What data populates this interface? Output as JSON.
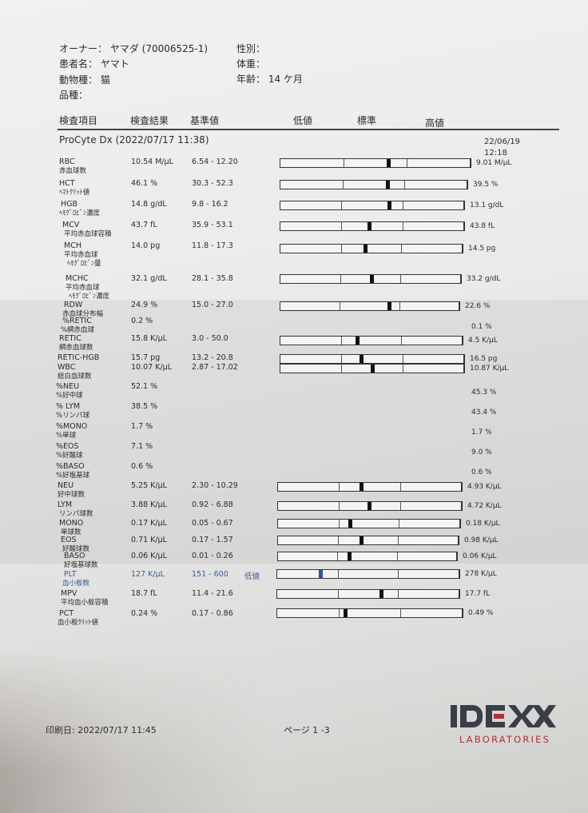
{
  "patient": {
    "owner_label": "オーナー：",
    "owner": "ヤマダ (70006525-1)",
    "name_label": "患者名：",
    "name": "ヤマト",
    "species_label": "動物種：",
    "species": "猫",
    "breed_label": "品種：",
    "breed": "",
    "sex_label": "性別：",
    "sex": "",
    "weight_label": "体重：",
    "weight": "",
    "age_label": "年齢：",
    "age": "14 ケ月"
  },
  "columns": {
    "item": "検査項目",
    "result": "検査結果",
    "reference": "基準値",
    "low": "低値",
    "normal": "標準",
    "high": "高値"
  },
  "instrument": "ProCyte Dx (2022/07/17 11:38)",
  "previous": {
    "date": "22/06/19",
    "time": "12:18"
  },
  "rows": [
    {
      "name": "RBC",
      "jp": [
        "赤血球数"
      ],
      "result": "10.54 M/µL",
      "value": 10.54,
      "ref": "6.54 - 12.20",
      "lo": 6.54,
      "hi": 12.2,
      "prev": "9.01 M/µL",
      "bar": true
    },
    {
      "name": "HCT",
      "jp": [
        "ﾍﾏﾄｸﾘｯﾄ値"
      ],
      "result": "46.1 %",
      "value": 46.1,
      "ref": "30.3 - 52.3",
      "lo": 30.3,
      "hi": 52.3,
      "prev": "39.5 %",
      "bar": true
    },
    {
      "name": "HGB",
      "jp": [
        "ﾍﾓｸﾞﾛﾋﾞﾝ濃度"
      ],
      "result": "14.8 g/dL",
      "value": 14.8,
      "ref": "9.8 - 16.2",
      "lo": 9.8,
      "hi": 16.2,
      "prev": "13.1 g/dL",
      "bar": true
    },
    {
      "name": "MCV",
      "jp": [
        "平均赤血球容積"
      ],
      "result": "43.7 fL",
      "value": 43.7,
      "ref": "35.9 - 53.1",
      "lo": 35.9,
      "hi": 53.1,
      "prev": "43.8 fL",
      "bar": true
    },
    {
      "name": "MCH",
      "jp": [
        "平均赤血球",
        "ﾍﾓｸﾞﾛﾋﾞﾝ量"
      ],
      "result": "14.0 pg",
      "value": 14.0,
      "ref": "11.8 - 17.3",
      "lo": 11.8,
      "hi": 17.3,
      "prev": "14.5 pg",
      "bar": true
    },
    {
      "name": "MCHC",
      "jp": [
        "平均赤血球",
        "ﾍﾓｸﾞﾛﾋﾞﾝ濃度"
      ],
      "result": "32.1 g/dL",
      "value": 32.1,
      "ref": "28.1 - 35.8",
      "lo": 28.1,
      "hi": 35.8,
      "prev": "33.2 g/dL",
      "bar": true
    },
    {
      "name": "RDW",
      "jp": [
        "赤血球分布幅"
      ],
      "result": "24.9 %",
      "value": 24.9,
      "ref": "15.0 - 27.0",
      "lo": 15.0,
      "hi": 27.0,
      "prev": "22.6 %",
      "bar": true
    },
    {
      "name": "%RETIC",
      "jp": [
        "%網赤血球"
      ],
      "result": "0.2 %",
      "ref": "",
      "prev": "0.1 %",
      "bar": false
    },
    {
      "name": "RETIC",
      "jp": [
        "網赤血球数"
      ],
      "result": "15.8 K/µL",
      "value": 15.8,
      "ref": "3.0 - 50.0",
      "lo": 3.0,
      "hi": 50.0,
      "prev": "4.5 K/µL",
      "bar": true
    },
    {
      "name": "RETIC-HGB",
      "jp": [],
      "result": "15.7 pg",
      "value": 15.7,
      "ref": "13.2 - 20.8",
      "lo": 13.2,
      "hi": 20.8,
      "prev": "16.5 pg",
      "bar": true
    },
    {
      "name": "WBC",
      "jp": [
        "総白血球数"
      ],
      "result": "10.07 K/µL",
      "value": 10.07,
      "ref": "2.87 - 17.02",
      "lo": 2.87,
      "hi": 17.02,
      "prev": "10.87 K/µL",
      "bar": true
    },
    {
      "name": "%NEU",
      "jp": [
        "%好中球"
      ],
      "result": "52.1 %",
      "ref": "",
      "prev": "45.3 %",
      "bar": false
    },
    {
      "name": "% LYM",
      "jp": [
        "%リンパ球"
      ],
      "result": "38.5 %",
      "ref": "",
      "prev": "43.4 %",
      "bar": false
    },
    {
      "name": "%MONO",
      "jp": [
        "%単球"
      ],
      "result": "1.7 %",
      "ref": "",
      "prev": "1.7 %",
      "bar": false
    },
    {
      "name": "%EOS",
      "jp": [
        "%好酸球"
      ],
      "result": "7.1 %",
      "ref": "",
      "prev": "9.0 %",
      "bar": false
    },
    {
      "name": "%BASO",
      "jp": [
        "%好塩基球"
      ],
      "result": "0.6 %",
      "ref": "",
      "prev": "0.6 %",
      "bar": false
    },
    {
      "name": "NEU",
      "jp": [
        "好中球数"
      ],
      "result": "5.25 K/µL",
      "value": 5.25,
      "ref": "2.30 - 10.29",
      "lo": 2.3,
      "hi": 10.29,
      "prev": "4.93 K/µL",
      "bar": true
    },
    {
      "name": "LYM",
      "jp": [
        "リンパ球数"
      ],
      "result": "3.88 K/µL",
      "value": 3.88,
      "ref": "0.92 - 6.88",
      "lo": 0.92,
      "hi": 6.88,
      "prev": "4.72 K/µL",
      "bar": true
    },
    {
      "name": "MONO",
      "jp": [
        "単球数"
      ],
      "result": "0.17 K/µL",
      "value": 0.17,
      "ref": "0.05 - 0.67",
      "lo": 0.05,
      "hi": 0.67,
      "prev": "0.18 K/µL",
      "bar": true
    },
    {
      "name": "EOS",
      "jp": [
        "好酸球数"
      ],
      "result": "0.71 K/µL",
      "value": 0.71,
      "ref": "0.17 - 1.57",
      "lo": 0.17,
      "hi": 1.57,
      "prev": "0.98 K/µL",
      "bar": true
    },
    {
      "name": "BASO",
      "jp": [
        "好塩基球数"
      ],
      "result": "0.06 K/µL",
      "value": 0.06,
      "ref": "0.01 - 0.26",
      "lo": 0.01,
      "hi": 0.26,
      "prev": "0.06 K/µL",
      "bar": true
    },
    {
      "name": "PLT",
      "jp": [
        "血小板数"
      ],
      "result": "127 K/µL",
      "value": 127,
      "ref": "151 - 600",
      "lo": 151,
      "hi": 600,
      "flag": "低値",
      "prev": "278 K/µL",
      "bar": true
    },
    {
      "name": "MPV",
      "jp": [
        "平均血小板容積"
      ],
      "result": "18.7 fL",
      "value": 18.7,
      "ref": "11.4 - 21.6",
      "lo": 11.4,
      "hi": 21.6,
      "prev": "17.7 fL",
      "bar": true
    },
    {
      "name": "PCT",
      "jp": [
        "血小板ｸﾘｯﾄ値"
      ],
      "result": "0.24 %",
      "value": 0.24,
      "ref": "0.17 - 0.86",
      "lo": 0.17,
      "hi": 0.86,
      "prev": "0.49 %",
      "bar": true
    }
  ],
  "colors": {
    "marker": "#111111",
    "low_flag": "#3a5aa0",
    "marker_low": "#2f4fb0",
    "logo_gray": "#3a3f47",
    "logo_red": "#b0303a"
  },
  "footer": {
    "printed": "印刷日: 2022/07/17 11:45",
    "page": "ページ 1 -3"
  },
  "logo": {
    "brand": "IDEXX",
    "sub": "LABORATORIES"
  }
}
